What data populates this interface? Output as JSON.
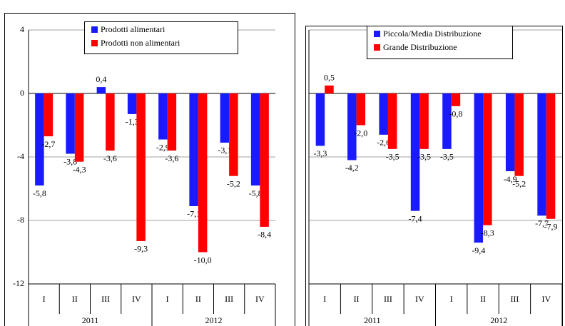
{
  "chart_data": [
    {
      "type": "bar",
      "categories": [
        "I",
        "II",
        "III",
        "IV",
        "I",
        "II",
        "III",
        "IV"
      ],
      "years": [
        "2011",
        "2012"
      ],
      "ylim": [
        -12,
        4
      ],
      "yticks": [
        4,
        0,
        -4,
        -8,
        -12
      ],
      "ytick_labels": true,
      "grid": true,
      "legend": "top",
      "series": [
        {
          "name": "Prodotti alimentari",
          "color": "#1a1aff",
          "values": [
            -5.8,
            -3.8,
            0.4,
            -1.3,
            -2.9,
            -7.1,
            -3.1,
            -5.8
          ],
          "value_labels": [
            "-5,8",
            "-3,8",
            "0,4",
            "-1,3",
            "-2,9",
            "-7,1",
            "-3,1",
            "-5,8"
          ]
        },
        {
          "name": "Prodotti non alimentari",
          "color": "#ff0000",
          "values": [
            -2.7,
            -4.3,
            -3.6,
            -9.3,
            -3.6,
            -10.0,
            -5.2,
            -8.4
          ],
          "value_labels": [
            "-2,7",
            "-4,3",
            "-3,6",
            "-9,3",
            "-3,6",
            "-10,0",
            "-5,2",
            "-8,4"
          ]
        }
      ]
    },
    {
      "type": "bar",
      "categories": [
        "I",
        "II",
        "III",
        "IV",
        "I",
        "II",
        "III",
        "IV"
      ],
      "years": [
        "2011",
        "2012"
      ],
      "ylim": [
        -12,
        4
      ],
      "yticks": [
        4,
        0,
        -4,
        -8,
        -12
      ],
      "ytick_labels": false,
      "grid": true,
      "legend": "top",
      "series": [
        {
          "name": "Piccola/Media Distribuzione",
          "color": "#1a1aff",
          "values": [
            -3.3,
            -4.2,
            -2.6,
            -7.4,
            -3.5,
            -9.4,
            -4.9,
            -7.7
          ],
          "value_labels": [
            "-3,3",
            "-4,2",
            "-2,6",
            "-7,4",
            "-3,5",
            "-9,4",
            "-4,9",
            "-7,7"
          ]
        },
        {
          "name": "Grande Distribuzione",
          "color": "#ff0000",
          "values": [
            0.5,
            -2.0,
            -3.5,
            -3.5,
            -0.8,
            -8.3,
            -5.2,
            -7.9
          ],
          "value_labels": [
            "0,5",
            "-2,0",
            "-3,5",
            "-3,5",
            "-0,8",
            "-8,3",
            "-5,2",
            "-7,9"
          ]
        }
      ]
    }
  ]
}
